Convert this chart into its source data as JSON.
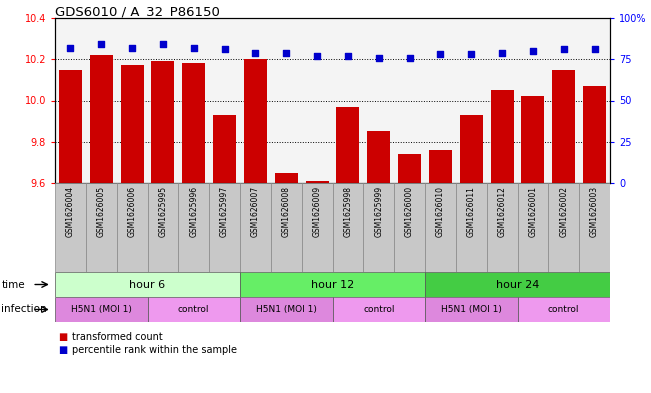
{
  "title": "GDS6010 / A_32_P86150",
  "samples": [
    "GSM1626004",
    "GSM1626005",
    "GSM1626006",
    "GSM1625995",
    "GSM1625996",
    "GSM1625997",
    "GSM1626007",
    "GSM1626008",
    "GSM1626009",
    "GSM1625998",
    "GSM1625999",
    "GSM1626000",
    "GSM1626010",
    "GSM1626011",
    "GSM1626012",
    "GSM1626001",
    "GSM1626002",
    "GSM1626003"
  ],
  "bar_values": [
    10.15,
    10.22,
    10.17,
    10.19,
    10.18,
    9.93,
    10.2,
    9.65,
    9.61,
    9.97,
    9.85,
    9.74,
    9.76,
    9.93,
    10.05,
    10.02,
    10.15,
    10.07
  ],
  "dot_values": [
    82,
    84,
    82,
    84,
    82,
    81,
    79,
    79,
    77,
    77,
    76,
    76,
    78,
    78,
    79,
    80,
    81,
    81
  ],
  "bar_color": "#cc0000",
  "dot_color": "#0000cc",
  "ylim_left": [
    9.6,
    10.4
  ],
  "ylim_right": [
    0,
    100
  ],
  "yticks_left": [
    9.6,
    9.8,
    10.0,
    10.2,
    10.4
  ],
  "yticks_right": [
    0,
    25,
    50,
    75,
    100
  ],
  "ytick_labels_right": [
    "0",
    "25",
    "50",
    "75",
    "100%"
  ],
  "grid_values": [
    9.8,
    10.0,
    10.2
  ],
  "time_groups": [
    {
      "label": "hour 6",
      "start": 0,
      "end": 6,
      "color": "#ccffcc"
    },
    {
      "label": "hour 12",
      "start": 6,
      "end": 12,
      "color": "#66ee66"
    },
    {
      "label": "hour 24",
      "start": 12,
      "end": 18,
      "color": "#44cc44"
    }
  ],
  "infect_groups": [
    {
      "label": "H5N1 (MOI 1)",
      "start": 0,
      "end": 3,
      "color": "#dd88dd"
    },
    {
      "label": "control",
      "start": 3,
      "end": 6,
      "color": "#ee99ee"
    },
    {
      "label": "H5N1 (MOI 1)",
      "start": 6,
      "end": 9,
      "color": "#dd88dd"
    },
    {
      "label": "control",
      "start": 9,
      "end": 12,
      "color": "#ee99ee"
    },
    {
      "label": "H5N1 (MOI 1)",
      "start": 12,
      "end": 15,
      "color": "#dd88dd"
    },
    {
      "label": "control",
      "start": 15,
      "end": 18,
      "color": "#ee99ee"
    }
  ],
  "sample_bg_color": "#c8c8c8",
  "sample_border_color": "#888888"
}
